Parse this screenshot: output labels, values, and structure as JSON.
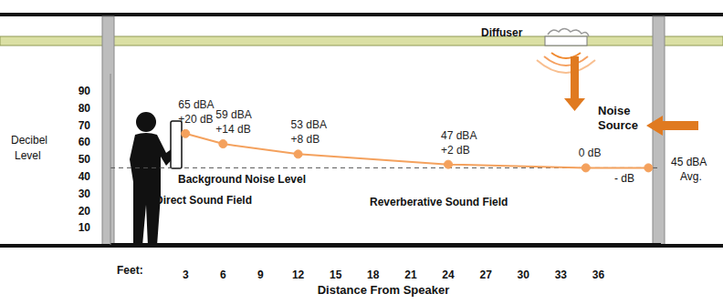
{
  "chart_data": {
    "type": "line",
    "x_label": "Distance From Speaker",
    "y_label": "Decibel Level",
    "x_prefix": "Feet:",
    "x": [
      3,
      6,
      12,
      24,
      35,
      40
    ],
    "values": [
      65,
      59,
      53,
      47,
      45,
      45
    ],
    "value_labels": [
      "65 dBA",
      "59 dBA",
      "53 dBA",
      "47 dBA",
      null,
      null
    ],
    "delta_labels": [
      "+20 dB",
      "+14 dB",
      "+8 dB",
      "+2 dB",
      "0 dB",
      null
    ],
    "color": "#f4a15d",
    "marker": "circle",
    "line_style": "solid",
    "xlim": [
      -3,
      41
    ],
    "xticks": [
      3,
      6,
      9,
      12,
      15,
      18,
      21,
      24,
      27,
      30,
      33,
      36
    ],
    "ylim": [
      0,
      100
    ],
    "yticks": [
      10,
      20,
      30,
      40,
      50,
      60,
      70,
      80,
      90
    ],
    "background": {
      "value": 45,
      "label": "Background Noise Level",
      "below_label": "- dB",
      "avg_label": "45 dBA Avg."
    },
    "annotations": {
      "direct_field": "Direct Sound Field",
      "reverberant_field": "Reverberative Sound Field",
      "diffuser": "Diffuser",
      "noise_source": "Noise Source"
    }
  }
}
